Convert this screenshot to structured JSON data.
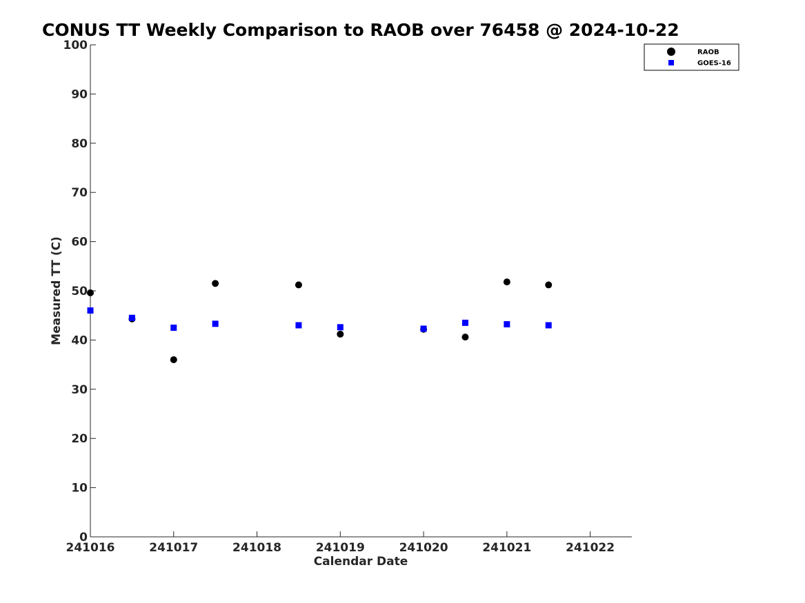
{
  "chart_data": {
    "type": "scatter",
    "title": "CONUS TT Weekly Comparison to RAOB over 76458 @ 2024-10-22",
    "xlabel": "Calendar Date",
    "ylabel": "Measured TT (C)",
    "xlim": [
      "241016",
      "241022.5"
    ],
    "ylim": [
      0,
      100
    ],
    "x_ticks": [
      "241016",
      "241017",
      "241018",
      "241019",
      "241020",
      "241021",
      "241022"
    ],
    "y_ticks": [
      "0",
      "10",
      "20",
      "30",
      "40",
      "50",
      "60",
      "70",
      "80",
      "90",
      "100"
    ],
    "grid": false,
    "legend_position": "top-right",
    "series": [
      {
        "name": "RAOB",
        "marker": "circle",
        "color": "#000000",
        "points": [
          {
            "x": "241016 00Z",
            "y": 49.6
          },
          {
            "x": "241016 12Z",
            "y": 44.3
          },
          {
            "x": "241017 00Z",
            "y": 36.0
          },
          {
            "x": "241017 12Z",
            "y": 51.5
          },
          {
            "x": "241018 12Z",
            "y": 51.2
          },
          {
            "x": "241019 00Z",
            "y": 41.2
          },
          {
            "x": "241020 00Z",
            "y": 42.2
          },
          {
            "x": "241020 12Z",
            "y": 40.6
          },
          {
            "x": "241021 00Z",
            "y": 51.8
          },
          {
            "x": "241021 12Z",
            "y": 51.2
          }
        ]
      },
      {
        "name": "GOES-16",
        "marker": "square",
        "color": "#0000ff",
        "points": [
          {
            "x": "241016 00Z",
            "y": 46.0
          },
          {
            "x": "241016 12Z",
            "y": 44.5
          },
          {
            "x": "241017 00Z",
            "y": 42.5
          },
          {
            "x": "241017 12Z",
            "y": 43.3
          },
          {
            "x": "241018 12Z",
            "y": 43.0
          },
          {
            "x": "241019 00Z",
            "y": 42.6
          },
          {
            "x": "241020 00Z",
            "y": 42.3
          },
          {
            "x": "241020 12Z",
            "y": 43.5
          },
          {
            "x": "241021 00Z",
            "y": 43.2
          },
          {
            "x": "241021 12Z",
            "y": 43.0
          }
        ]
      }
    ]
  }
}
